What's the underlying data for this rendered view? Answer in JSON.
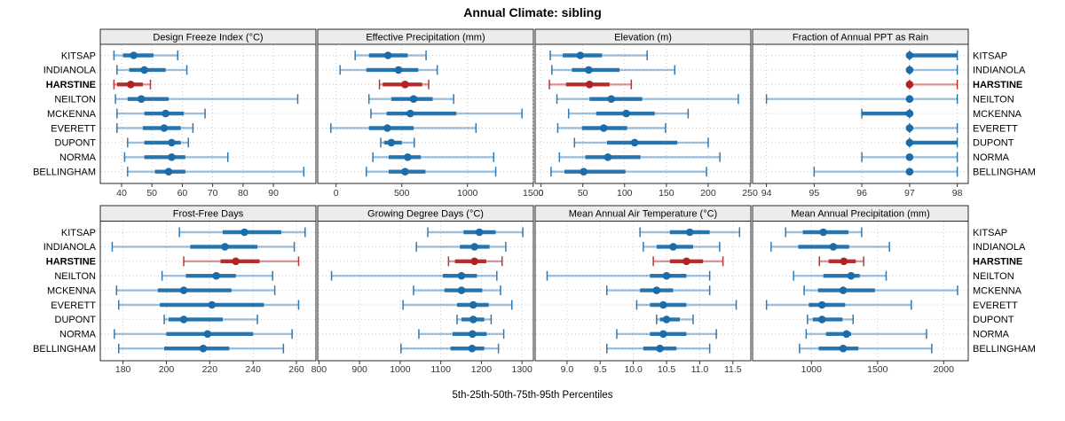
{
  "title": "Annual Climate: sibling",
  "xlabel": "5th-25th-50th-75th-95th Percentiles",
  "percentile_labels": [
    "5th",
    "25th",
    "50th",
    "75th",
    "95th"
  ],
  "locations": [
    "KITSAP",
    "INDIANOLA",
    "HARSTINE",
    "NEILTON",
    "MCKENNA",
    "EVERETT",
    "DUPONT",
    "NORMA",
    "BELLINGHAM"
  ],
  "highlight_location": "HARSTINE",
  "colors": {
    "series": "#1b6ca8",
    "series_light": "rgba(33,113,181,0.42)",
    "highlight": "#b22222",
    "highlight_light": "rgba(178,34,34,0.45)",
    "strip_bg": "#ececec",
    "panel_border": "#2a2a2a",
    "grid": "#c9c9c9",
    "tick_text": "#333333"
  },
  "chart_data": [
    {
      "type": "dotplot-interval",
      "title": "Design Freeze Index (°C)",
      "xlim": [
        33,
        104
      ],
      "ticks": [
        40,
        50,
        60,
        70,
        80,
        90
      ],
      "tick_labels": [
        "40",
        "50",
        "60",
        "70",
        "80",
        "90"
      ],
      "values": [
        [
          37.5,
          40.5,
          44,
          50.5,
          58.5
        ],
        [
          38.5,
          42.5,
          47.5,
          54.5,
          61.5
        ],
        [
          37.5,
          38.5,
          43,
          47,
          49.5
        ],
        [
          38,
          42,
          46.5,
          55.5,
          98
        ],
        [
          38.5,
          47.5,
          54.5,
          60.5,
          67.5
        ],
        [
          38.5,
          47,
          54,
          59.5,
          63.5
        ],
        [
          42,
          47.5,
          56.5,
          59.5,
          62
        ],
        [
          41,
          47.5,
          56.5,
          61,
          75
        ],
        [
          42,
          51,
          55.5,
          61,
          100
        ]
      ]
    },
    {
      "type": "dotplot-interval",
      "title": "Effective Precipitation (mm)",
      "xlim": [
        -140,
        1502
      ],
      "ticks": [
        0,
        500,
        1000,
        1500
      ],
      "tick_labels": [
        "0",
        "500",
        "1000",
        "1500"
      ],
      "values": [
        [
          145,
          250,
          395,
          545,
          685
        ],
        [
          30,
          230,
          475,
          625,
          770
        ],
        [
          330,
          355,
          525,
          655,
          705
        ],
        [
          250,
          420,
          590,
          735,
          895
        ],
        [
          265,
          385,
          565,
          915,
          1415
        ],
        [
          -40,
          250,
          390,
          590,
          1065
        ],
        [
          340,
          365,
          420,
          500,
          595
        ],
        [
          280,
          400,
          545,
          645,
          1200
        ],
        [
          230,
          400,
          525,
          680,
          1215
        ]
      ]
    },
    {
      "type": "dotplot-interval",
      "title": "Elevation (m)",
      "xlim": [
        -7,
        251
      ],
      "ticks": [
        0,
        50,
        100,
        150,
        200,
        250
      ],
      "tick_labels": [
        "0",
        "50",
        "100",
        "150",
        "200",
        "250"
      ],
      "values": [
        [
          11,
          26,
          47,
          73,
          127
        ],
        [
          13,
          37,
          57,
          94,
          160
        ],
        [
          10,
          30,
          58,
          82,
          108
        ],
        [
          19,
          58,
          84,
          121,
          236
        ],
        [
          33,
          66,
          102,
          136,
          176
        ],
        [
          20,
          49,
          75,
          103,
          149
        ],
        [
          40,
          79,
          112,
          163,
          200
        ],
        [
          22,
          53,
          80,
          119,
          214
        ],
        [
          12,
          28,
          51,
          101,
          198
        ]
      ]
    },
    {
      "type": "dotplot-interval",
      "title": "Fraction of Annual PPT as Rain",
      "xlim": [
        93.71,
        98.23
      ],
      "ticks": [
        94,
        95,
        96,
        97,
        98
      ],
      "tick_labels": [
        "94",
        "95",
        "96",
        "97",
        "98"
      ],
      "values": [
        [
          97,
          97,
          97,
          98,
          98
        ],
        [
          97,
          97,
          97,
          97,
          98
        ],
        [
          97,
          97,
          97,
          97,
          98
        ],
        [
          94,
          97,
          97,
          97,
          98
        ],
        [
          96,
          96,
          97,
          97,
          97
        ],
        [
          97,
          97,
          97,
          97,
          98
        ],
        [
          97,
          97,
          97,
          98,
          98
        ],
        [
          96,
          97,
          97,
          97,
          98
        ],
        [
          95,
          97,
          97,
          97,
          98
        ]
      ]
    },
    {
      "type": "dotplot-interval",
      "title": "Frost-Free Days",
      "xlim": [
        169.5,
        269
      ],
      "ticks": [
        180,
        200,
        220,
        240,
        260
      ],
      "tick_labels": [
        "180",
        "200",
        "220",
        "240",
        "260"
      ],
      "values": [
        [
          206,
          226,
          236,
          253,
          264
        ],
        [
          175,
          211,
          227,
          242,
          259
        ],
        [
          208,
          225,
          232,
          243,
          261
        ],
        [
          198,
          209,
          223,
          232,
          249
        ],
        [
          177,
          196,
          208,
          230,
          250
        ],
        [
          178,
          197,
          221,
          245,
          261
        ],
        [
          199,
          201,
          208,
          226,
          242
        ],
        [
          176,
          200,
          219,
          240,
          258
        ],
        [
          178,
          199,
          217,
          229,
          254
        ]
      ]
    },
    {
      "type": "dotplot-interval",
      "title": "Growing Degree Days (°C)",
      "xlim": [
        797,
        1328
      ],
      "ticks": [
        800,
        900,
        1000,
        1100,
        1200,
        1300
      ],
      "tick_labels": [
        "800",
        "900",
        "1000",
        "1100",
        "1200",
        "1300"
      ],
      "values": [
        [
          1068,
          1156,
          1195,
          1235,
          1302
        ],
        [
          1040,
          1147,
          1183,
          1220,
          1260
        ],
        [
          1119,
          1135,
          1183,
          1212,
          1251
        ],
        [
          831,
          1105,
          1151,
          1189,
          1238
        ],
        [
          1033,
          1109,
          1151,
          1202,
          1247
        ],
        [
          1007,
          1140,
          1180,
          1218,
          1275
        ],
        [
          1140,
          1151,
          1180,
          1207,
          1224
        ],
        [
          1046,
          1129,
          1178,
          1213,
          1255
        ],
        [
          1002,
          1124,
          1177,
          1207,
          1242
        ]
      ]
    },
    {
      "type": "dotplot-interval",
      "title": "Mean Annual Air Temperature (°C)",
      "xlim": [
        8.52,
        11.77
      ],
      "ticks": [
        9.0,
        9.5,
        10.0,
        10.5,
        11.0,
        11.5
      ],
      "tick_labels": [
        "9.0",
        "9.5",
        "10.0",
        "10.5",
        "11.0",
        "11.5"
      ],
      "values": [
        [
          10.1,
          10.55,
          10.85,
          11.15,
          11.6
        ],
        [
          10.15,
          10.35,
          10.6,
          10.9,
          11.3
        ],
        [
          10.3,
          10.55,
          10.8,
          11.05,
          11.35
        ],
        [
          8.7,
          10.25,
          10.5,
          10.8,
          11.15
        ],
        [
          9.6,
          10.1,
          10.35,
          10.6,
          11.15
        ],
        [
          10.05,
          10.25,
          10.45,
          10.8,
          11.55
        ],
        [
          10.35,
          10.4,
          10.5,
          10.7,
          10.9
        ],
        [
          9.75,
          10.25,
          10.45,
          10.8,
          11.25
        ],
        [
          9.6,
          10.15,
          10.4,
          10.65,
          11.15
        ]
      ]
    },
    {
      "type": "dotplot-interval",
      "title": "Mean Annual Precipitation (mm)",
      "xlim": [
        555,
        2186
      ],
      "ticks": [
        1000,
        1500,
        2000
      ],
      "tick_labels": [
        "1000",
        "1500",
        "2000"
      ],
      "values": [
        [
          805,
          935,
          1090,
          1280,
          1380
        ],
        [
          695,
          900,
          1165,
          1285,
          1590
        ],
        [
          1060,
          1130,
          1245,
          1335,
          1395
        ],
        [
          865,
          1090,
          1300,
          1365,
          1565
        ],
        [
          945,
          1050,
          1240,
          1480,
          2105
        ],
        [
          660,
          980,
          1080,
          1255,
          1755
        ],
        [
          970,
          1010,
          1080,
          1235,
          1315
        ],
        [
          960,
          1110,
          1265,
          1300,
          1870
        ],
        [
          910,
          1055,
          1240,
          1355,
          1910
        ]
      ]
    }
  ]
}
